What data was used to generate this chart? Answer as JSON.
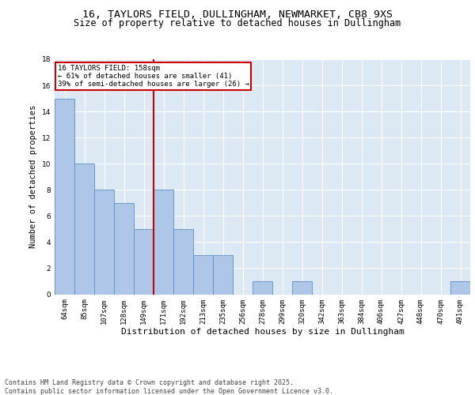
{
  "title": "16, TAYLORS FIELD, DULLINGHAM, NEWMARKET, CB8 9XS",
  "subtitle": "Size of property relative to detached houses in Dullingham",
  "xlabel": "Distribution of detached houses by size in Dullingham",
  "ylabel": "Number of detached properties",
  "categories": [
    "64sqm",
    "85sqm",
    "107sqm",
    "128sqm",
    "149sqm",
    "171sqm",
    "192sqm",
    "213sqm",
    "235sqm",
    "256sqm",
    "278sqm",
    "299sqm",
    "320sqm",
    "342sqm",
    "363sqm",
    "384sqm",
    "406sqm",
    "427sqm",
    "448sqm",
    "470sqm",
    "491sqm"
  ],
  "values": [
    15,
    10,
    8,
    7,
    5,
    8,
    5,
    3,
    3,
    0,
    1,
    0,
    1,
    0,
    0,
    0,
    0,
    0,
    0,
    0,
    1
  ],
  "bar_color": "#aec6e8",
  "bar_edge_color": "#5a8fc2",
  "vline_x": 4.5,
  "vline_color": "#cc0000",
  "annotation_text": "16 TAYLORS FIELD: 158sqm\n← 61% of detached houses are smaller (41)\n39% of semi-detached houses are larger (26) →",
  "annotation_box_color": "#cc0000",
  "annotation_text_color": "#000000",
  "ylim": [
    0,
    18
  ],
  "yticks": [
    0,
    2,
    4,
    6,
    8,
    10,
    12,
    14,
    16,
    18
  ],
  "background_color": "#dce9f5",
  "plot_bg_color": "#dce9f5",
  "footer": "Contains HM Land Registry data © Crown copyright and database right 2025.\nContains public sector information licensed under the Open Government Licence v3.0.",
  "title_fontsize": 9.5,
  "subtitle_fontsize": 8.5,
  "xlabel_fontsize": 8,
  "ylabel_fontsize": 7.5,
  "tick_fontsize": 6.5,
  "footer_fontsize": 6,
  "annot_fontsize": 6.5
}
